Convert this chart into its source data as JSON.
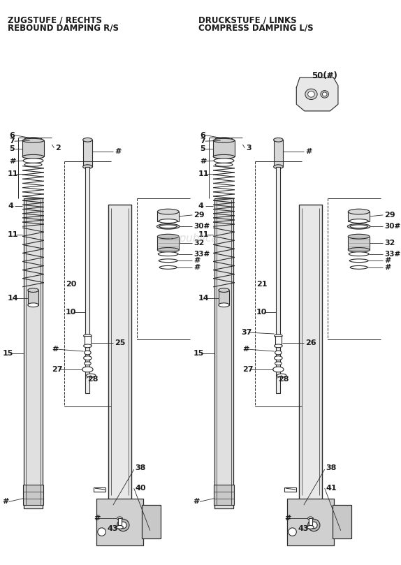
{
  "title_left_line1": "ZUGSTUFE / RECHTS",
  "title_left_line2": "REBOUND DAMPING R/S",
  "title_right_line1": "DRUCKSTUFE / LINKS",
  "title_right_line2": "COMPRESS DAMPING L/S",
  "bg_color": "#ffffff",
  "line_color": "#2a2a2a",
  "text_color": "#1a1a1a",
  "part50_label": "50(#)",
  "watermark": "republica"
}
